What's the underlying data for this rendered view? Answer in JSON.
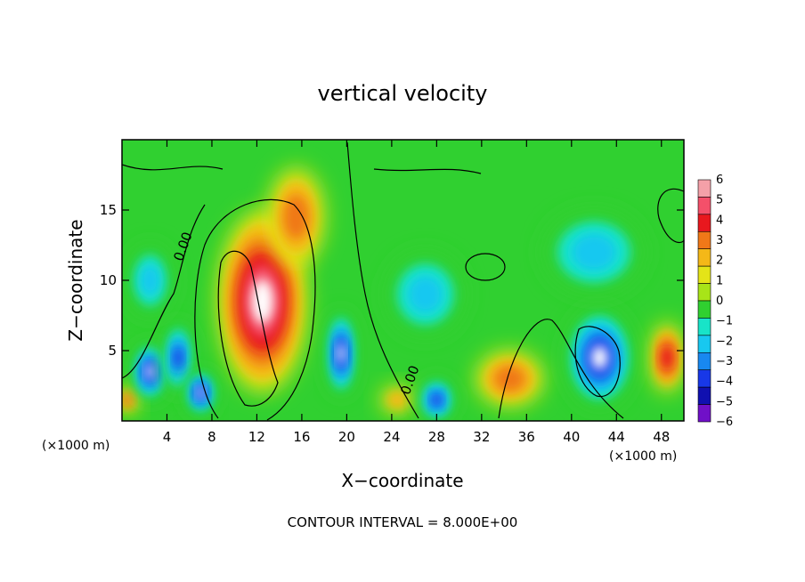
{
  "chart_data": {
    "type": "heatmap",
    "title": "vertical velocity",
    "xlabel": "X−coordinate",
    "ylabel": "Z−coordinate",
    "x_unit": "(×1000 m)",
    "x_ticks": [
      4,
      8,
      12,
      16,
      20,
      24,
      28,
      32,
      36,
      40,
      44,
      48
    ],
    "y_ticks": [
      5,
      10,
      15
    ],
    "xlim": [
      0,
      50
    ],
    "ylim": [
      0,
      20
    ],
    "colorbar": {
      "levels": [
        6,
        5,
        4,
        3,
        2,
        1,
        0,
        -1,
        -2,
        -3,
        -4,
        -5,
        -6
      ],
      "level_labels": [
        "6",
        "5",
        "4",
        "3",
        "2",
        "1",
        "0",
        "−1",
        "−2",
        "−3",
        "−4",
        "−5",
        "−6"
      ],
      "colors": [
        "#f4a0a8",
        "#f4506a",
        "#e8181e",
        "#f07818",
        "#f4b818",
        "#e4e418",
        "#a8e418",
        "#30d030",
        "#18e4c8",
        "#18c8f0",
        "#1888f0",
        "#1838e8",
        "#1010b0",
        "#7010c8"
      ]
    },
    "contour_interval_text": "CONTOUR INTERVAL = 8.000E+00",
    "contour_labels": [
      {
        "text": "0.00",
        "x": 5.8,
        "z": 12.3
      },
      {
        "text": "0.00",
        "x": 26.0,
        "z": 2.8
      }
    ],
    "features": [
      {
        "kind": "updraft",
        "x": 12.5,
        "z": 8.5,
        "w": 8,
        "h": 13,
        "value": 6
      },
      {
        "kind": "updraft",
        "x": 15.5,
        "z": 14.5,
        "w": 5,
        "h": 7,
        "value": 3
      },
      {
        "kind": "updraft",
        "x": 34.5,
        "z": 3.0,
        "w": 6,
        "h": 4,
        "value": 3
      },
      {
        "kind": "updraft",
        "x": 48.5,
        "z": 4.5,
        "w": 3,
        "h": 5,
        "value": 4
      },
      {
        "kind": "updraft",
        "x": 24.5,
        "z": 1.5,
        "w": 3,
        "h": 2,
        "value": 2
      },
      {
        "kind": "updraft",
        "x": 0.5,
        "z": 1.5,
        "w": 2,
        "h": 2,
        "value": 3
      },
      {
        "kind": "downdraft",
        "x": 42.5,
        "z": 4.5,
        "w": 6,
        "h": 7,
        "value": -6
      },
      {
        "kind": "downdraft",
        "x": 19.5,
        "z": 4.8,
        "w": 2.5,
        "h": 6,
        "value": -6
      },
      {
        "kind": "downdraft",
        "x": 2.5,
        "z": 3.5,
        "w": 3,
        "h": 4,
        "value": -6
      },
      {
        "kind": "downdraft",
        "x": 5.0,
        "z": 4.5,
        "w": 2.5,
        "h": 5,
        "value": -5
      },
      {
        "kind": "downdraft",
        "x": 7.0,
        "z": 2.0,
        "w": 2.5,
        "h": 3,
        "value": -6
      },
      {
        "kind": "downdraft",
        "x": 28.0,
        "z": 1.5,
        "w": 3,
        "h": 3,
        "value": -5
      },
      {
        "kind": "downdraft",
        "x": 42.0,
        "z": 12.0,
        "w": 9,
        "h": 6,
        "value": -3
      },
      {
        "kind": "downdraft",
        "x": 27.0,
        "z": 9.0,
        "w": 7,
        "h": 6,
        "value": -3
      },
      {
        "kind": "downdraft",
        "x": 2.5,
        "z": 10.0,
        "w": 4,
        "h": 5,
        "value": -3
      }
    ]
  }
}
